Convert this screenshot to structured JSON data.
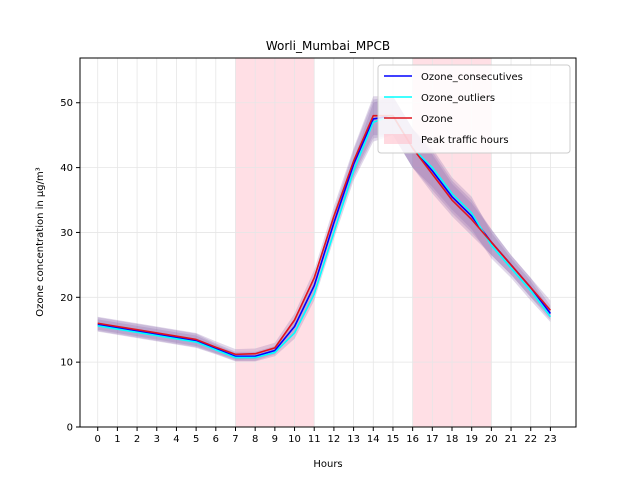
{
  "chart_data": {
    "type": "line",
    "title": "Worli_Mumbai_MPCB",
    "xlabel": "Hours",
    "ylabel": "Ozone concentration in µg/m³",
    "x": [
      0,
      1,
      2,
      3,
      4,
      5,
      6,
      7,
      8,
      9,
      10,
      11,
      12,
      13,
      14,
      15,
      16,
      17,
      18,
      19,
      20,
      21,
      22,
      23
    ],
    "xlim": [
      -0.9,
      24.3
    ],
    "ylim": [
      0,
      56.9
    ],
    "yticks": [
      0,
      10,
      20,
      30,
      40,
      50
    ],
    "grid": true,
    "legend_position": "top-right",
    "highlight_ranges": [
      {
        "label": "Peak traffic hours",
        "from": 7,
        "to": 11
      },
      {
        "label": "Peak traffic hours",
        "from": 16,
        "to": 20
      }
    ],
    "series": [
      {
        "name": "Ozone_consecutives",
        "color": "#0000ff",
        "values": [
          15.8,
          15.3,
          14.8,
          14.3,
          13.8,
          13.3,
          12.1,
          10.9,
          10.9,
          11.8,
          15.5,
          21.8,
          31.5,
          40.5,
          47.5,
          48.0,
          43.0,
          39.5,
          35.5,
          32.5,
          28.5,
          25.0,
          21.5,
          17.5
        ],
        "band_lower": [
          14.8,
          14.3,
          13.8,
          13.3,
          12.8,
          12.3,
          11.3,
          10.2,
          10.2,
          11.2,
          14.5,
          20.5,
          30.0,
          38.5,
          44.5,
          45.0,
          40.0,
          36.5,
          33.0,
          30.0,
          26.5,
          23.5,
          20.0,
          16.5
        ],
        "band_upper": [
          16.9,
          16.4,
          15.9,
          15.4,
          14.9,
          14.4,
          12.9,
          11.6,
          11.6,
          12.5,
          16.7,
          23.2,
          33.2,
          42.7,
          50.5,
          51.0,
          46.0,
          42.5,
          38.0,
          35.0,
          30.5,
          26.5,
          23.0,
          18.7
        ]
      },
      {
        "name": "Ozone_outliers",
        "color": "#00ffff",
        "values": [
          15.6,
          15.1,
          14.6,
          14.1,
          13.6,
          13.1,
          11.9,
          10.7,
          10.7,
          11.5,
          14.5,
          20.5,
          30.0,
          39.5,
          47.0,
          48.0,
          43.0,
          40.0,
          36.0,
          33.0,
          28.0,
          24.5,
          21.0,
          17.0
        ],
        "band_lower": [
          14.7,
          14.2,
          13.7,
          13.2,
          12.7,
          12.2,
          11.2,
          10.1,
          10.1,
          10.9,
          13.6,
          19.5,
          29.0,
          38.0,
          44.0,
          45.0,
          40.0,
          37.0,
          33.5,
          30.5,
          26.0,
          23.0,
          19.5,
          16.2
        ],
        "band_upper": [
          16.6,
          16.1,
          15.6,
          15.1,
          14.6,
          14.1,
          12.7,
          11.4,
          11.4,
          12.2,
          15.5,
          21.6,
          31.2,
          41.2,
          50.0,
          51.0,
          46.0,
          43.0,
          38.5,
          35.5,
          30.0,
          26.0,
          22.5,
          18.0
        ]
      },
      {
        "name": "Ozone",
        "color": "#e0141e",
        "values": [
          16.0,
          15.5,
          15.0,
          14.5,
          14.0,
          13.5,
          12.3,
          11.2,
          11.3,
          12.2,
          16.5,
          23.0,
          32.5,
          41.0,
          48.0,
          48.0,
          43.0,
          39.0,
          35.0,
          32.0,
          28.5,
          25.0,
          21.5,
          18.0
        ],
        "band_lower": [
          15.0,
          14.5,
          14.0,
          13.5,
          13.0,
          12.5,
          11.4,
          10.4,
          10.5,
          11.4,
          15.5,
          21.8,
          31.0,
          39.0,
          45.0,
          45.0,
          40.0,
          36.0,
          32.5,
          29.5,
          26.5,
          23.5,
          20.0,
          17.0
        ],
        "band_upper": [
          17.0,
          16.5,
          16.0,
          15.5,
          15.0,
          14.5,
          13.2,
          12.0,
          12.1,
          13.0,
          17.5,
          24.2,
          34.0,
          43.0,
          51.0,
          51.0,
          46.0,
          42.0,
          37.5,
          34.5,
          30.5,
          26.5,
          23.0,
          19.5
        ]
      }
    ],
    "legend": [
      {
        "label": "Ozone_consecutives",
        "kind": "line",
        "color": "#0000ff"
      },
      {
        "label": "Ozone_outliers",
        "kind": "line",
        "color": "#00ffff"
      },
      {
        "label": "Ozone",
        "kind": "line",
        "color": "#e0141e"
      },
      {
        "label": "Peak traffic hours",
        "kind": "patch",
        "color": "#ffc0cb"
      }
    ],
    "colors": {
      "highlight": "#ffc0cb",
      "band": "#8e6fb0",
      "grid": "#e6e6e6",
      "axis": "#000000"
    }
  }
}
